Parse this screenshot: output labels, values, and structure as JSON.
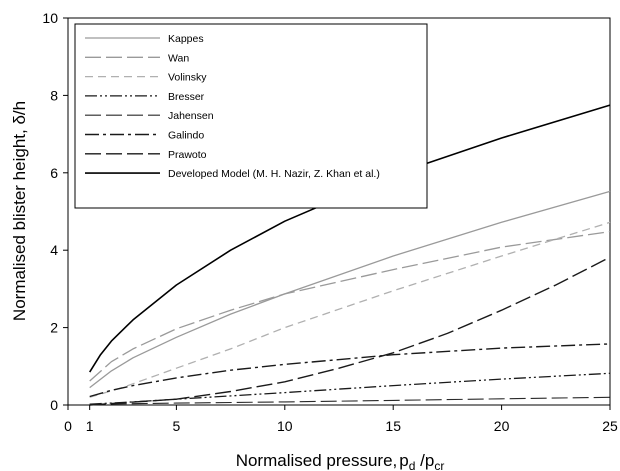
{
  "chart_data": {
    "type": "line",
    "xlabel": "Normalised pressure,",
    "xlabel_symbol": {
      "base": "p",
      "sub1": "d",
      "sep": " /p",
      "sub2": "cr"
    },
    "ylabel": "Normalised blister height, δ/h",
    "xlim": [
      0,
      25
    ],
    "ylim": [
      0,
      10
    ],
    "x_ticks": [
      0,
      1,
      5,
      10,
      15,
      20,
      25
    ],
    "y_ticks": [
      0,
      2,
      4,
      6,
      8,
      10
    ],
    "grid": false,
    "legend_position": "top-left",
    "series": [
      {
        "name": "Kappes",
        "color": "#9a9a9a",
        "dash": "solid",
        "x": [
          1,
          2,
          3,
          5,
          7.5,
          10,
          15,
          20,
          25
        ],
        "y": [
          0.45,
          0.88,
          1.22,
          1.75,
          2.35,
          2.87,
          3.85,
          4.72,
          5.52
        ]
      },
      {
        "name": "Wan",
        "color": "#9a9a9a",
        "dash": "long-dash",
        "x": [
          1,
          2,
          3,
          5,
          7.5,
          10,
          15,
          20,
          25
        ],
        "y": [
          0.62,
          1.12,
          1.45,
          1.97,
          2.45,
          2.87,
          3.5,
          4.08,
          4.48
        ]
      },
      {
        "name": "Volinsky",
        "color": "#b0b0b0",
        "dash": "dash",
        "x": [
          1,
          2.5,
          5,
          7.5,
          10,
          15,
          20,
          25
        ],
        "y": [
          0.2,
          0.45,
          0.95,
          1.45,
          2.0,
          2.95,
          3.85,
          4.72
        ]
      },
      {
        "name": "Bresser",
        "color": "#1a1a1a",
        "dash": "dash-dot-dot",
        "x": [
          1,
          3,
          5,
          10,
          15,
          20,
          25
        ],
        "y": [
          0.02,
          0.08,
          0.15,
          0.32,
          0.5,
          0.67,
          0.82
        ]
      },
      {
        "name": "Jahensen",
        "color": "#2a2a2a",
        "dash": "long-dash-thin",
        "x": [
          1,
          5,
          10,
          15,
          20,
          25
        ],
        "y": [
          0.02,
          0.05,
          0.08,
          0.12,
          0.16,
          0.2
        ]
      },
      {
        "name": "Galindo",
        "color": "#1a1a1a",
        "dash": "dash-dot",
        "x": [
          1,
          2,
          3,
          5,
          7.5,
          10,
          15,
          20,
          25
        ],
        "y": [
          0.22,
          0.38,
          0.5,
          0.7,
          0.9,
          1.05,
          1.3,
          1.47,
          1.58
        ]
      },
      {
        "name": "Prawoto",
        "color": "#1a1a1a",
        "dash": "long-dash-heavy",
        "x": [
          1,
          5,
          7.5,
          10,
          12.5,
          15,
          17.5,
          20,
          22.5,
          25
        ],
        "y": [
          0.0,
          0.15,
          0.35,
          0.6,
          0.95,
          1.35,
          1.85,
          2.45,
          3.1,
          3.82
        ]
      },
      {
        "name": "Developed Model (M. H. Nazir, Z. Khan et al.)",
        "color": "#000000",
        "dash": "solid-heavy",
        "x": [
          1,
          1.5,
          2,
          3,
          5,
          7.5,
          10,
          15,
          20,
          25
        ],
        "y": [
          0.85,
          1.3,
          1.65,
          2.2,
          3.1,
          4.0,
          4.75,
          5.95,
          6.9,
          7.75
        ]
      }
    ]
  }
}
